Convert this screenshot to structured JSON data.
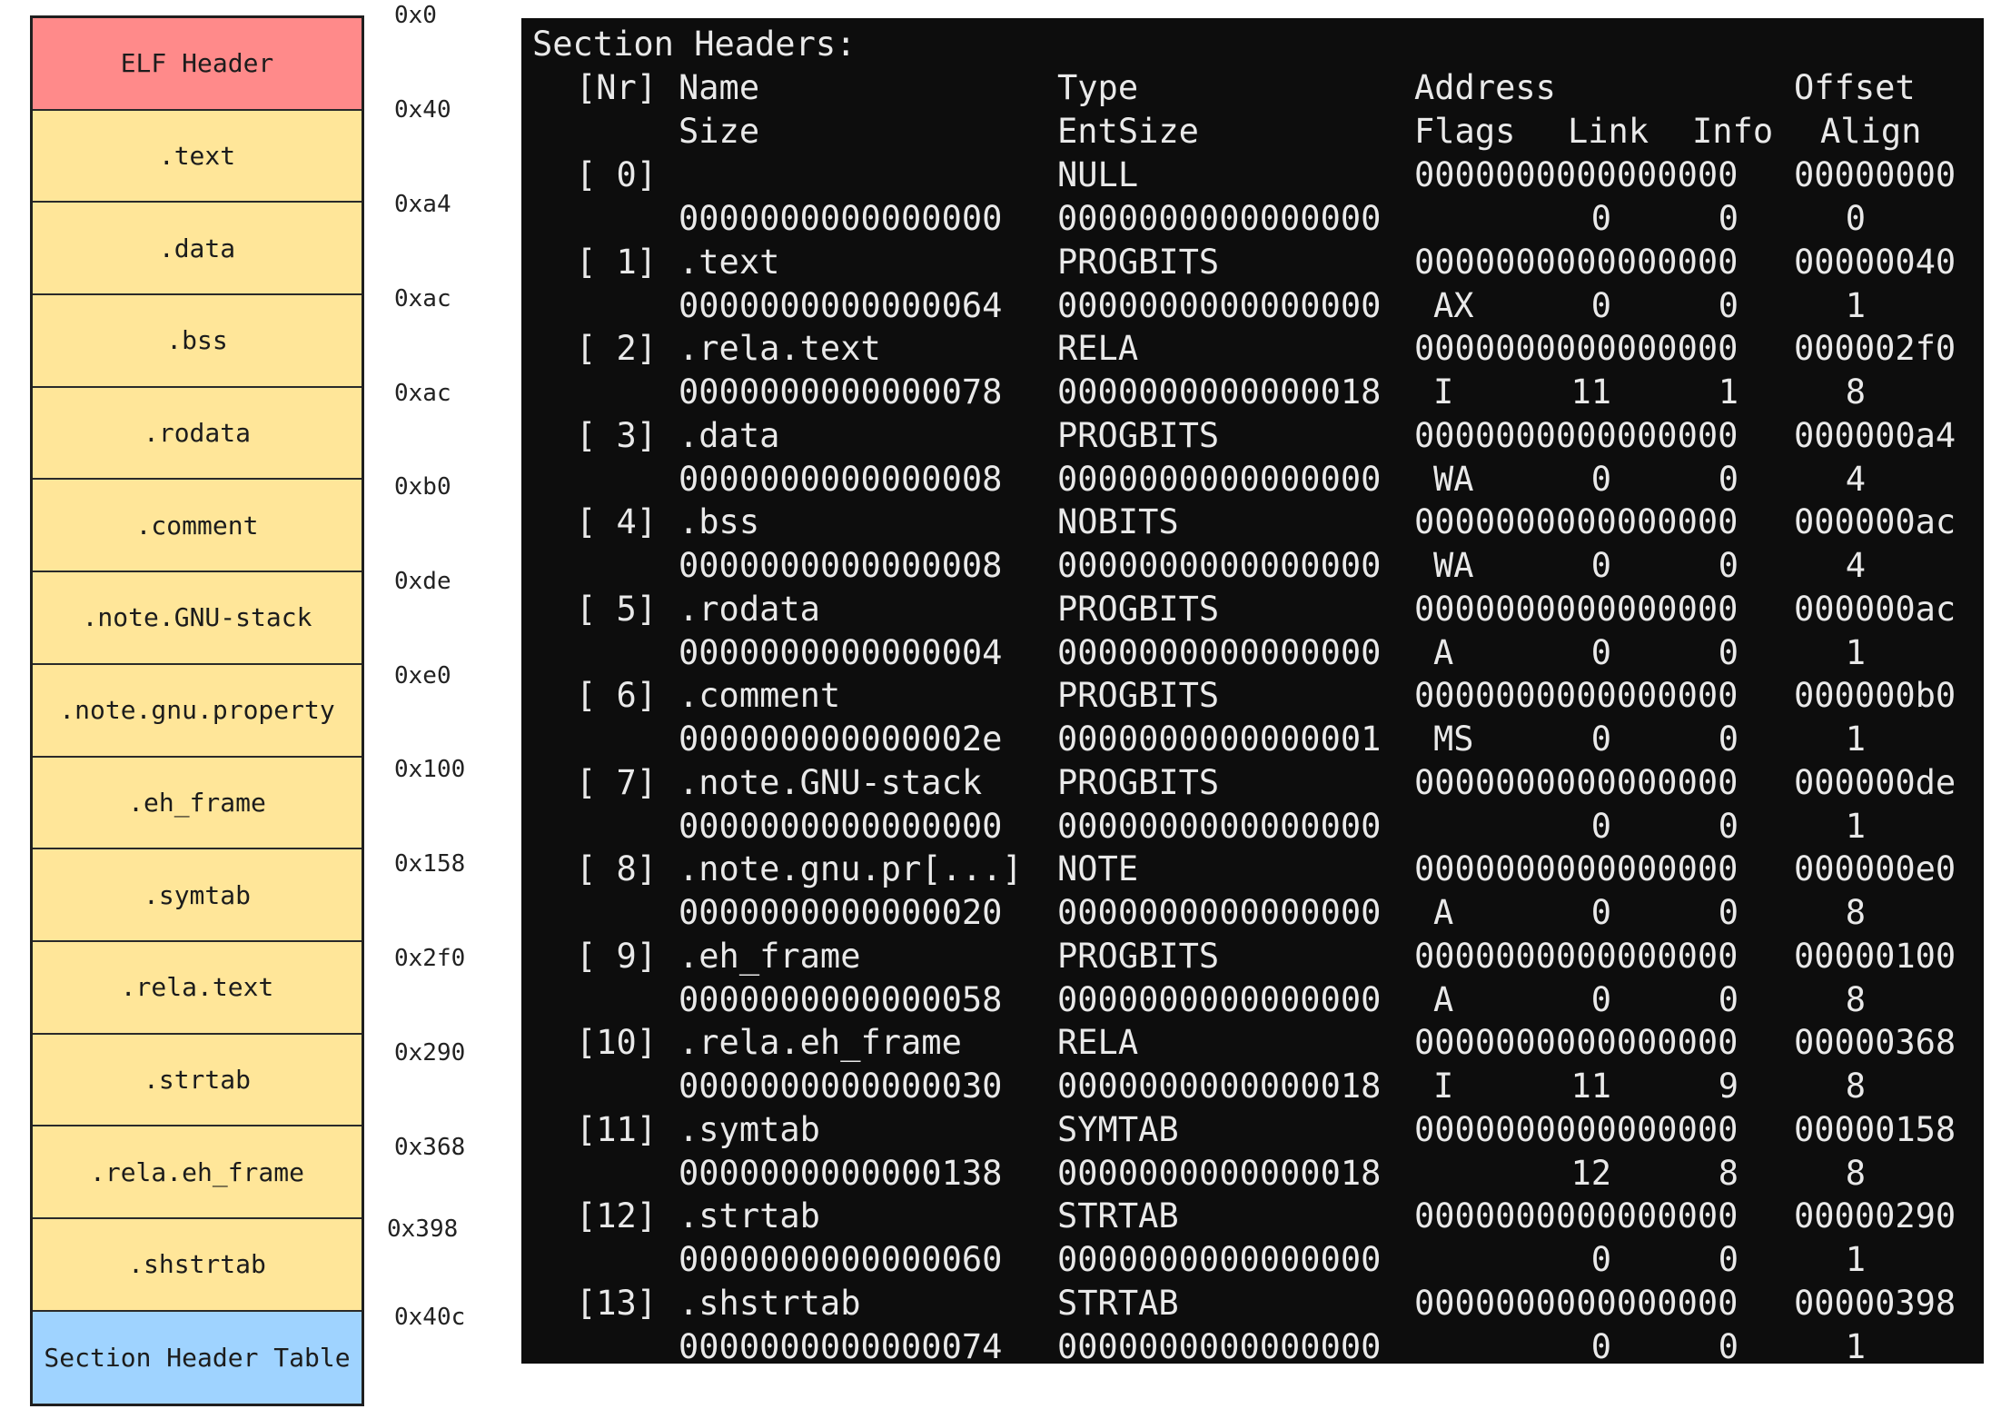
{
  "layout": {
    "blocks": [
      {
        "label": "ELF Header",
        "color": "#FF8A8A"
      },
      {
        "label": ".text",
        "color": "#FFE699"
      },
      {
        "label": ".data",
        "color": "#FFE699"
      },
      {
        "label": ".bss",
        "color": "#FFE699"
      },
      {
        "label": ".rodata",
        "color": "#FFE699"
      },
      {
        "label": ".comment",
        "color": "#FFE699"
      },
      {
        "label": ".note.GNU-stack",
        "color": "#FFE699"
      },
      {
        "label": ".note.gnu.property",
        "color": "#FFE699"
      },
      {
        "label": ".eh_frame",
        "color": "#FFE699"
      },
      {
        "label": ".symtab",
        "color": "#FFE699"
      },
      {
        "label": ".rela.text",
        "color": "#FFE699"
      },
      {
        "label": ".strtab",
        "color": "#FFE699"
      },
      {
        "label": ".rela.eh_frame",
        "color": "#FFE699"
      },
      {
        "label": ".shstrtab",
        "color": "#FFE699"
      },
      {
        "label": "Section Header Table",
        "color": "#9FD3FF"
      }
    ],
    "offsets": [
      "0x0",
      "0x40",
      "0xa4",
      "0xac",
      "0xac",
      "0xb0",
      "0xde",
      "0xe0",
      "0x100",
      "0x158",
      "0x2f0",
      "0x290",
      "0x368",
      "0x398",
      "0x40c"
    ]
  },
  "terminal": {
    "title": "Section Headers:",
    "header1": {
      "nr": "[Nr]",
      "name": "Name",
      "type": "Type",
      "address": "Address",
      "offset": "Offset"
    },
    "header2": {
      "size": "Size",
      "entsize": "EntSize",
      "flags": "Flags",
      "link": "Link",
      "info": "Info",
      "align": "Align"
    },
    "sections": [
      {
        "nr": "[ 0]",
        "name": "",
        "type": "NULL",
        "address": "0000000000000000",
        "offset": "00000000",
        "size": "0000000000000000",
        "entsize": "0000000000000000",
        "flags": "",
        "link": "0",
        "info": "0",
        "align": "0"
      },
      {
        "nr": "[ 1]",
        "name": ".text",
        "type": "PROGBITS",
        "address": "0000000000000000",
        "offset": "00000040",
        "size": "0000000000000064",
        "entsize": "0000000000000000",
        "flags": "AX",
        "link": "0",
        "info": "0",
        "align": "1"
      },
      {
        "nr": "[ 2]",
        "name": ".rela.text",
        "type": "RELA",
        "address": "0000000000000000",
        "offset": "000002f0",
        "size": "0000000000000078",
        "entsize": "0000000000000018",
        "flags": "I",
        "link": "11",
        "info": "1",
        "align": "8"
      },
      {
        "nr": "[ 3]",
        "name": ".data",
        "type": "PROGBITS",
        "address": "0000000000000000",
        "offset": "000000a4",
        "size": "0000000000000008",
        "entsize": "0000000000000000",
        "flags": "WA",
        "link": "0",
        "info": "0",
        "align": "4"
      },
      {
        "nr": "[ 4]",
        "name": ".bss",
        "type": "NOBITS",
        "address": "0000000000000000",
        "offset": "000000ac",
        "size": "0000000000000008",
        "entsize": "0000000000000000",
        "flags": "WA",
        "link": "0",
        "info": "0",
        "align": "4"
      },
      {
        "nr": "[ 5]",
        "name": ".rodata",
        "type": "PROGBITS",
        "address": "0000000000000000",
        "offset": "000000ac",
        "size": "0000000000000004",
        "entsize": "0000000000000000",
        "flags": "A",
        "link": "0",
        "info": "0",
        "align": "1"
      },
      {
        "nr": "[ 6]",
        "name": ".comment",
        "type": "PROGBITS",
        "address": "0000000000000000",
        "offset": "000000b0",
        "size": "000000000000002e",
        "entsize": "0000000000000001",
        "flags": "MS",
        "link": "0",
        "info": "0",
        "align": "1"
      },
      {
        "nr": "[ 7]",
        "name": ".note.GNU-stack",
        "type": "PROGBITS",
        "address": "0000000000000000",
        "offset": "000000de",
        "size": "0000000000000000",
        "entsize": "0000000000000000",
        "flags": "",
        "link": "0",
        "info": "0",
        "align": "1"
      },
      {
        "nr": "[ 8]",
        "name": ".note.gnu.pr[...]",
        "type": "NOTE",
        "address": "0000000000000000",
        "offset": "000000e0",
        "size": "0000000000000020",
        "entsize": "0000000000000000",
        "flags": "A",
        "link": "0",
        "info": "0",
        "align": "8"
      },
      {
        "nr": "[ 9]",
        "name": ".eh_frame",
        "type": "PROGBITS",
        "address": "0000000000000000",
        "offset": "00000100",
        "size": "0000000000000058",
        "entsize": "0000000000000000",
        "flags": "A",
        "link": "0",
        "info": "0",
        "align": "8"
      },
      {
        "nr": "[10]",
        "name": ".rela.eh_frame",
        "type": "RELA",
        "address": "0000000000000000",
        "offset": "00000368",
        "size": "0000000000000030",
        "entsize": "0000000000000018",
        "flags": "I",
        "link": "11",
        "info": "9",
        "align": "8"
      },
      {
        "nr": "[11]",
        "name": ".symtab",
        "type": "SYMTAB",
        "address": "0000000000000000",
        "offset": "00000158",
        "size": "0000000000000138",
        "entsize": "0000000000000018",
        "flags": "",
        "link": "12",
        "info": "8",
        "align": "8"
      },
      {
        "nr": "[12]",
        "name": ".strtab",
        "type": "STRTAB",
        "address": "0000000000000000",
        "offset": "00000290",
        "size": "0000000000000060",
        "entsize": "0000000000000000",
        "flags": "",
        "link": "0",
        "info": "0",
        "align": "1"
      },
      {
        "nr": "[13]",
        "name": ".shstrtab",
        "type": "STRTAB",
        "address": "0000000000000000",
        "offset": "00000398",
        "size": "0000000000000074",
        "entsize": "0000000000000000",
        "flags": "",
        "link": "0",
        "info": "0",
        "align": "1"
      }
    ]
  }
}
